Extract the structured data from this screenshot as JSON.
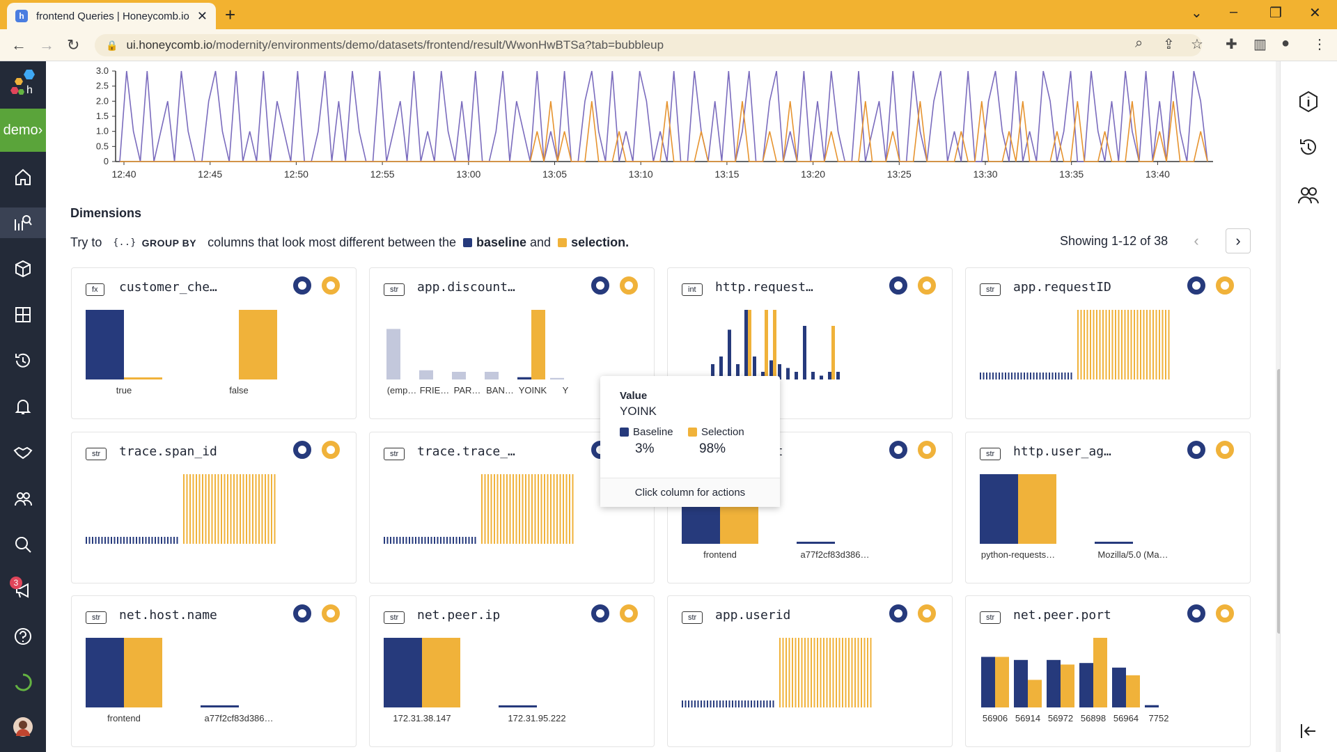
{
  "browser": {
    "tab_title": "frontend Queries | Honeycomb.io",
    "url_host": "ui.honeycomb.io",
    "url_path": "/modernity/environments/demo/datasets/frontend/result/WwonHwBTSa?tab=bubbleup"
  },
  "sidebar": {
    "env_label": "demo",
    "notifications_count": "3"
  },
  "chart_data": {
    "type": "line",
    "x_ticks": [
      "12:40",
      "12:45",
      "12:50",
      "12:55",
      "13:00",
      "13:05",
      "13:10",
      "13:15",
      "13:20",
      "13:25",
      "13:30",
      "13:35",
      "13:40"
    ],
    "y_ticks": [
      "3.0",
      "2.5",
      "2.0",
      "1.5",
      "1.0",
      "0.5",
      "0"
    ],
    "ylim": [
      0,
      3
    ],
    "series": [
      {
        "color": "#7a6bbd",
        "values": [
          0,
          3,
          1,
          0,
          3,
          0,
          1,
          2,
          0,
          3,
          1,
          0,
          0,
          2,
          3,
          1,
          0,
          3,
          0,
          1,
          0,
          3,
          0,
          2,
          1,
          0,
          3,
          0,
          0,
          1,
          3,
          0,
          2,
          0,
          3,
          1,
          0,
          0,
          3,
          0,
          1,
          2,
          0,
          3,
          0,
          1,
          0,
          3,
          1,
          0,
          2,
          0,
          3,
          0,
          0,
          1,
          3,
          0,
          2,
          1,
          0,
          3,
          0,
          1,
          0,
          3,
          0,
          0,
          2,
          3,
          1,
          0,
          3,
          0,
          1,
          0,
          3,
          2,
          0,
          1,
          0,
          3,
          0,
          0,
          3,
          1,
          0,
          2,
          0,
          3,
          0,
          1,
          3,
          0,
          0,
          2,
          3,
          0,
          1,
          0,
          3,
          0,
          2,
          0,
          3,
          1,
          0,
          0,
          3,
          0,
          1,
          2,
          0,
          3,
          0,
          0,
          3,
          1,
          0,
          2,
          3,
          0,
          1,
          0,
          3,
          0,
          0,
          2,
          3,
          1,
          0,
          3,
          0,
          1,
          0,
          3,
          2,
          0,
          1,
          3,
          0,
          0,
          3,
          1,
          0,
          2,
          0,
          3,
          1,
          0,
          3,
          0,
          2,
          0,
          3,
          1,
          0,
          3,
          2,
          0
        ]
      },
      {
        "color": "#e6932e",
        "values": [
          0,
          0,
          0,
          0,
          0,
          0,
          0,
          0,
          0,
          0,
          0,
          0,
          0,
          0,
          0,
          0,
          0,
          0,
          0,
          0,
          0,
          0,
          0,
          0,
          0,
          0,
          0,
          0,
          0,
          0,
          0,
          0,
          0,
          0,
          0,
          0,
          0,
          0,
          0,
          0,
          0,
          0,
          0,
          0,
          0,
          0,
          0,
          0,
          0,
          0,
          0,
          0,
          0,
          0,
          0,
          0,
          0,
          0,
          0,
          0,
          0,
          1,
          0,
          2,
          0,
          1,
          0,
          0,
          0,
          2,
          0,
          0,
          0,
          1,
          0,
          0,
          0,
          0,
          0,
          0,
          2,
          0,
          0,
          0,
          0,
          1,
          0,
          0,
          0,
          0,
          0,
          2,
          0,
          0,
          0,
          1,
          0,
          0,
          2,
          0,
          0,
          0,
          0,
          0,
          1,
          0,
          0,
          0,
          0,
          2,
          0,
          0,
          0,
          1,
          0,
          0,
          0,
          2,
          0,
          0,
          0,
          0,
          0,
          1,
          0,
          0,
          2,
          0,
          0,
          0,
          1,
          0,
          2,
          0,
          0,
          0,
          0,
          1,
          0,
          0,
          2,
          0,
          0,
          0,
          1,
          0,
          0,
          0,
          2,
          0,
          0,
          0,
          1,
          0,
          2,
          0,
          0,
          0,
          1,
          0
        ]
      }
    ]
  },
  "dimensions": {
    "heading": "Dimensions",
    "hint_prefix": "Try to",
    "group_by_label": "GROUP BY",
    "hint_mid": "columns that look most different between the",
    "baseline_label": "baseline",
    "and_label": "and",
    "selection_label": "selection.",
    "showing": "Showing 1-12 of 38",
    "baseline_color": "#263a7c",
    "selection_color": "#f0b23a"
  },
  "cards": [
    {
      "type": "fx",
      "name": "customer_che…",
      "kind": "pair2",
      "labels": [
        "true",
        "false"
      ],
      "bars": [
        [
          1.0,
          0.02
        ],
        [
          0,
          0.98
        ]
      ]
    },
    {
      "type": "str",
      "name": "app.discount…",
      "kind": "discount",
      "labels": [
        "(emp…",
        "FRIE…",
        "PAR…",
        "BAN…",
        "YOINK",
        "Y"
      ]
    },
    {
      "type": "int",
      "name": "http.request…",
      "kind": "request"
    },
    {
      "type": "str",
      "name": "app.requestID",
      "kind": "stripes"
    },
    {
      "type": "str",
      "name": "trace.span_id",
      "kind": "stripes"
    },
    {
      "type": "str",
      "name": "trace.trace_…",
      "kind": "stripes"
    },
    {
      "type": "str",
      "name": "http.host",
      "kind": "host",
      "labels": [
        "frontend",
        "a77f2cf83d386…"
      ]
    },
    {
      "type": "str",
      "name": "http.user_ag…",
      "kind": "host",
      "labels": [
        "python-requests…",
        "Mozilla/5.0 (Ma…"
      ]
    },
    {
      "type": "str",
      "name": "net.host.name",
      "kind": "host",
      "labels": [
        "frontend",
        "a77f2cf83d386…"
      ]
    },
    {
      "type": "str",
      "name": "net.peer.ip",
      "kind": "host",
      "labels": [
        "172.31.38.147",
        "172.31.95.222"
      ]
    },
    {
      "type": "str",
      "name": "app.userid",
      "kind": "stripes"
    },
    {
      "type": "str",
      "name": "net.peer.port",
      "kind": "ports",
      "labels": [
        "56906",
        "56914",
        "56972",
        "56898",
        "56964",
        "7752"
      ],
      "bars": [
        [
          0.66,
          0.66
        ],
        [
          0.62,
          0.36
        ],
        [
          0.62,
          0.56
        ],
        [
          0.58,
          1.0
        ],
        [
          0.52,
          0.42
        ],
        [
          0.03,
          0
        ]
      ]
    }
  ],
  "tooltip": {
    "value_label": "Value",
    "value": "YOINK",
    "baseline_label": "Baseline",
    "selection_label": "Selection",
    "baseline_pct": "3%",
    "selection_pct": "98%",
    "footer": "Click column for actions"
  }
}
